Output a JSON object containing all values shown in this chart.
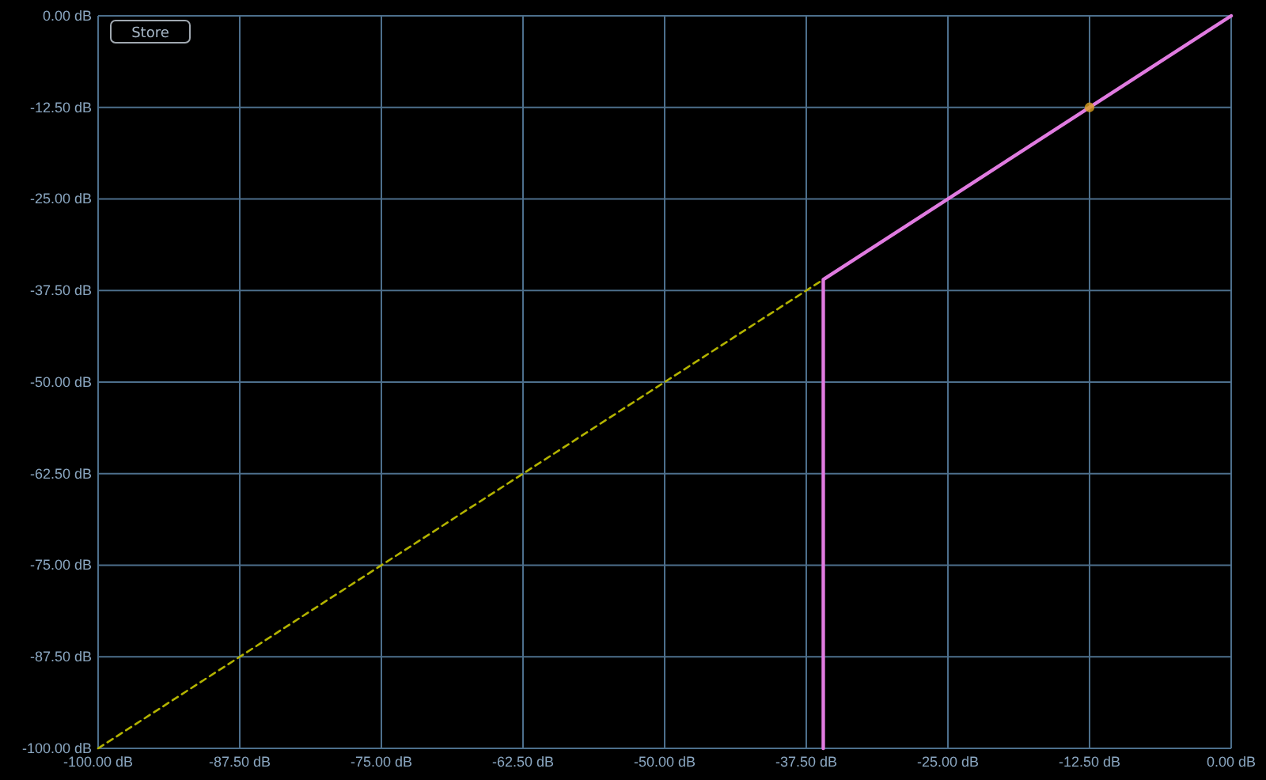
{
  "chart_data": {
    "type": "line",
    "xlim": [
      -100,
      0
    ],
    "ylim": [
      -100,
      0
    ],
    "xticks": [
      {
        "value": -100,
        "label": "-100.00 dB"
      },
      {
        "value": -87.5,
        "label": "-87.50 dB"
      },
      {
        "value": -75,
        "label": "-75.00 dB"
      },
      {
        "value": -62.5,
        "label": "-62.50 dB"
      },
      {
        "value": -50,
        "label": "-50.00 dB"
      },
      {
        "value": -37.5,
        "label": "-37.50 dB"
      },
      {
        "value": -25,
        "label": "-25.00 dB"
      },
      {
        "value": -12.5,
        "label": "-12.50 dB"
      },
      {
        "value": 0,
        "label": "0.00 dB"
      }
    ],
    "yticks": [
      {
        "value": 0,
        "label": "0.00 dB"
      },
      {
        "value": -12.5,
        "label": "-12.50 dB"
      },
      {
        "value": -25,
        "label": "-25.00 dB"
      },
      {
        "value": -37.5,
        "label": "-37.50 dB"
      },
      {
        "value": -50,
        "label": "-50.00 dB"
      },
      {
        "value": -62.5,
        "label": "-62.50 dB"
      },
      {
        "value": -75,
        "label": "-75.00 dB"
      },
      {
        "value": -87.5,
        "label": "-87.50 dB"
      },
      {
        "value": -100,
        "label": "-100.00 dB"
      }
    ],
    "grid": true,
    "annotations": [
      "Store"
    ],
    "series": [
      {
        "color": "#b3b300",
        "line_style": "dashed",
        "x": [
          -100,
          -36
        ],
        "values": [
          -100,
          -36
        ]
      },
      {
        "color": "#e07be0",
        "line_style": "solid",
        "x": [
          -36,
          -36,
          0
        ],
        "values": [
          -100,
          -36,
          0
        ]
      },
      {
        "type": "scatter",
        "color": "#d9a020",
        "marker": "circle",
        "x": [
          -12.5
        ],
        "values": [
          -12.5
        ]
      }
    ]
  }
}
